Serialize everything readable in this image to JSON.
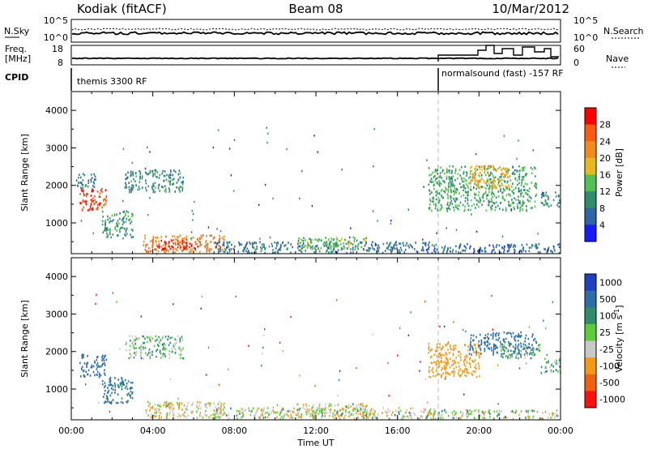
{
  "header": {
    "station": "Kodiak (fitACF)",
    "beam": "Beam 08",
    "date": "10/Mar/2012"
  },
  "summary": {
    "nsky_label": "N.Sky",
    "nsky_ticks": [
      "10^5",
      "10^0"
    ],
    "nsearch_label": "N.Search",
    "nsearch_ticks": [
      "10^5",
      "10^0"
    ],
    "freq_label_line1": "Freq.",
    "freq_label_line2": "[MHz]",
    "freq_ticks": [
      "18",
      "8"
    ],
    "nave_label": "Nave",
    "nave_ticks": [
      "60",
      "0"
    ],
    "cpid_label": "CPID",
    "cpid_segments": [
      "themis 3300 RF",
      "normalsound (fast) -157 RF"
    ]
  },
  "chart_data": [
    {
      "type": "heatmap",
      "title": "",
      "xlabel": "Time UT",
      "ylabel": "Slant Range [km]",
      "x_ticks": [
        "00:00",
        "04:00",
        "08:00",
        "12:00",
        "16:00",
        "20:00",
        "00:00"
      ],
      "xlim_hours": [
        0,
        24
      ],
      "y_ticks": [
        1000,
        2000,
        3000,
        4000
      ],
      "ylim": [
        180,
        4500
      ],
      "colorbar": {
        "label": "Power [dB]",
        "ticks": [
          "4",
          "8",
          "12",
          "16",
          "20",
          "24",
          "28"
        ],
        "range": [
          0,
          30
        ],
        "colors": [
          "#1a1aff",
          "#2f64a6",
          "#2f8c6c",
          "#52c052",
          "#e8b820",
          "#f08a1a",
          "#ff5a10",
          "#ff0000"
        ]
      },
      "regions": [
        {
          "t0": 0.4,
          "t1": 1.7,
          "r0": 1300,
          "r1": 1900,
          "level": 26
        },
        {
          "t0": 0.2,
          "t1": 1.2,
          "r0": 1900,
          "r1": 2300,
          "level": 8
        },
        {
          "t0": 1.5,
          "t1": 3.0,
          "r0": 600,
          "r1": 1300,
          "level": 10
        },
        {
          "t0": 2.6,
          "t1": 5.5,
          "r0": 1800,
          "r1": 2400,
          "level": 9
        },
        {
          "t0": 3.5,
          "t1": 7.5,
          "r0": 200,
          "r1": 650,
          "level": 22
        },
        {
          "t0": 4.2,
          "t1": 6.2,
          "r0": 280,
          "r1": 520,
          "level": 28
        },
        {
          "t0": 7.0,
          "t1": 17.8,
          "r0": 180,
          "r1": 480,
          "level": 7
        },
        {
          "t0": 11.0,
          "t1": 14.5,
          "r0": 250,
          "r1": 600,
          "level": 13
        },
        {
          "t0": 17.5,
          "t1": 22.8,
          "r0": 1300,
          "r1": 2500,
          "level": 11
        },
        {
          "t0": 19.5,
          "t1": 21.5,
          "r0": 1900,
          "r1": 2500,
          "level": 18
        },
        {
          "t0": 23.0,
          "t1": 24.0,
          "r0": 1400,
          "r1": 1800,
          "level": 9
        },
        {
          "t0": 17.5,
          "t1": 24.0,
          "r0": 180,
          "r1": 420,
          "level": 6
        }
      ]
    },
    {
      "type": "heatmap",
      "title": "",
      "xlabel": "Time UT",
      "ylabel": "Slant Range [km]",
      "x_ticks": [
        "00:00",
        "04:00",
        "08:00",
        "12:00",
        "16:00",
        "20:00",
        "00:00"
      ],
      "xlim_hours": [
        0,
        24
      ],
      "y_ticks": [
        1000,
        2000,
        3000,
        4000
      ],
      "ylim": [
        180,
        4500
      ],
      "colorbar": {
        "label": "Velocity [m s^-1]",
        "ticks": [
          "1000",
          "500",
          "100",
          "25",
          "-25",
          "-100",
          "-500",
          "-1000"
        ],
        "range": [
          -1000,
          1000
        ],
        "colors": [
          "#2040c0",
          "#2e6ea8",
          "#2f8c6c",
          "#5ccc3c",
          "#c8c8c8",
          "#f09a18",
          "#f06010",
          "#ff1010"
        ]
      },
      "regions": [
        {
          "t0": 0.4,
          "t1": 1.7,
          "r0": 1300,
          "r1": 1900,
          "vel": 300
        },
        {
          "t0": 1.5,
          "t1": 3.0,
          "r0": 600,
          "r1": 1300,
          "vel": 150
        },
        {
          "t0": 2.6,
          "t1": 5.5,
          "r0": 1800,
          "r1": 2400,
          "vel": 0
        },
        {
          "t0": 3.5,
          "t1": 7.5,
          "r0": 200,
          "r1": 650,
          "vel": -80
        },
        {
          "t0": 7.0,
          "t1": 17.8,
          "r0": 180,
          "r1": 480,
          "vel": -60
        },
        {
          "t0": 11.0,
          "t1": 14.5,
          "r0": 250,
          "r1": 600,
          "vel": -50
        },
        {
          "t0": 17.5,
          "t1": 20.0,
          "r0": 1300,
          "r1": 2200,
          "vel": -300
        },
        {
          "t0": 19.5,
          "t1": 22.8,
          "r0": 1900,
          "r1": 2500,
          "vel": 200
        },
        {
          "t0": 21.0,
          "t1": 23.0,
          "r0": 1800,
          "r1": 2200,
          "vel": 0
        },
        {
          "t0": 23.0,
          "t1": 24.0,
          "r0": 1400,
          "r1": 1800,
          "vel": 0
        },
        {
          "t0": 17.5,
          "t1": 24.0,
          "r0": 180,
          "r1": 420,
          "vel": -40
        }
      ]
    }
  ]
}
